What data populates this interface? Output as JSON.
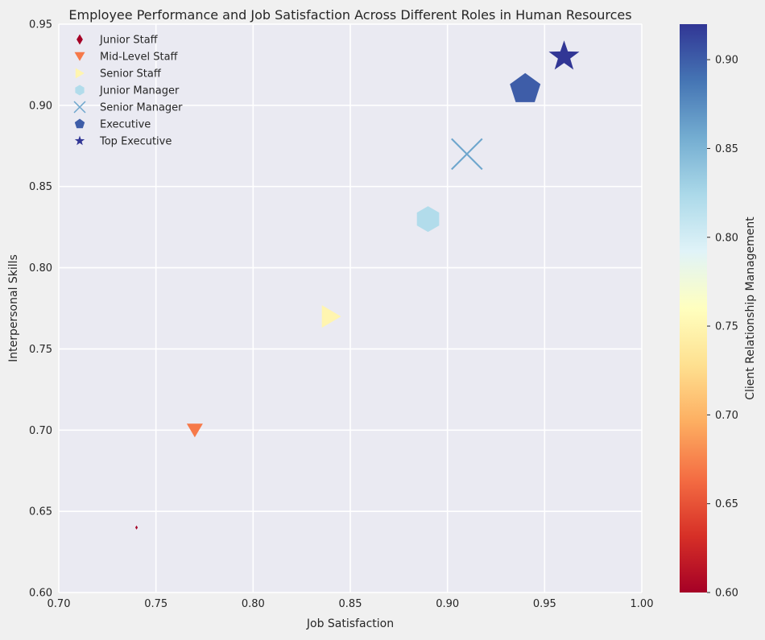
{
  "chart_data": {
    "type": "scatter",
    "title": "Employee Performance and Job Satisfaction Across Different Roles in Human Resources",
    "xlabel": "Job Satisfaction",
    "ylabel": "Interpersonal Skills",
    "xlim": [
      0.7,
      1.0
    ],
    "ylim": [
      0.6,
      0.95
    ],
    "x_ticks": [
      "0.70",
      "0.75",
      "0.80",
      "0.85",
      "0.90",
      "0.95",
      "1.00"
    ],
    "y_ticks": [
      "0.60",
      "0.65",
      "0.70",
      "0.75",
      "0.80",
      "0.85",
      "0.90",
      "0.95"
    ],
    "grid": true,
    "legend_position": "top-left",
    "colorbar": {
      "label": "Client Relationship Management",
      "range": [
        0.6,
        0.92
      ],
      "ticks": [
        "0.60",
        "0.65",
        "0.70",
        "0.75",
        "0.80",
        "0.85",
        "0.90"
      ],
      "colormap": "RdYlBu"
    },
    "series": [
      {
        "name": "Junior Staff",
        "x": 0.74,
        "y": 0.64,
        "color_value": 0.6,
        "marker": "diamond",
        "size": 1
      },
      {
        "name": "Mid-Level Staff",
        "x": 0.77,
        "y": 0.7,
        "color_value": 0.67,
        "marker": "triangle-down",
        "size": 2
      },
      {
        "name": "Senior Staff",
        "x": 0.84,
        "y": 0.77,
        "color_value": 0.75,
        "marker": "triangle-right",
        "size": 3
      },
      {
        "name": "Junior Manager",
        "x": 0.89,
        "y": 0.83,
        "color_value": 0.82,
        "marker": "hexagon",
        "size": 4
      },
      {
        "name": "Senior Manager",
        "x": 0.91,
        "y": 0.87,
        "color_value": 0.86,
        "marker": "x",
        "size": 5
      },
      {
        "name": "Executive",
        "x": 0.94,
        "y": 0.91,
        "color_value": 0.9,
        "marker": "pentagon",
        "size": 6
      },
      {
        "name": "Top Executive",
        "x": 0.96,
        "y": 0.93,
        "color_value": 0.92,
        "marker": "star",
        "size": 7
      }
    ]
  }
}
